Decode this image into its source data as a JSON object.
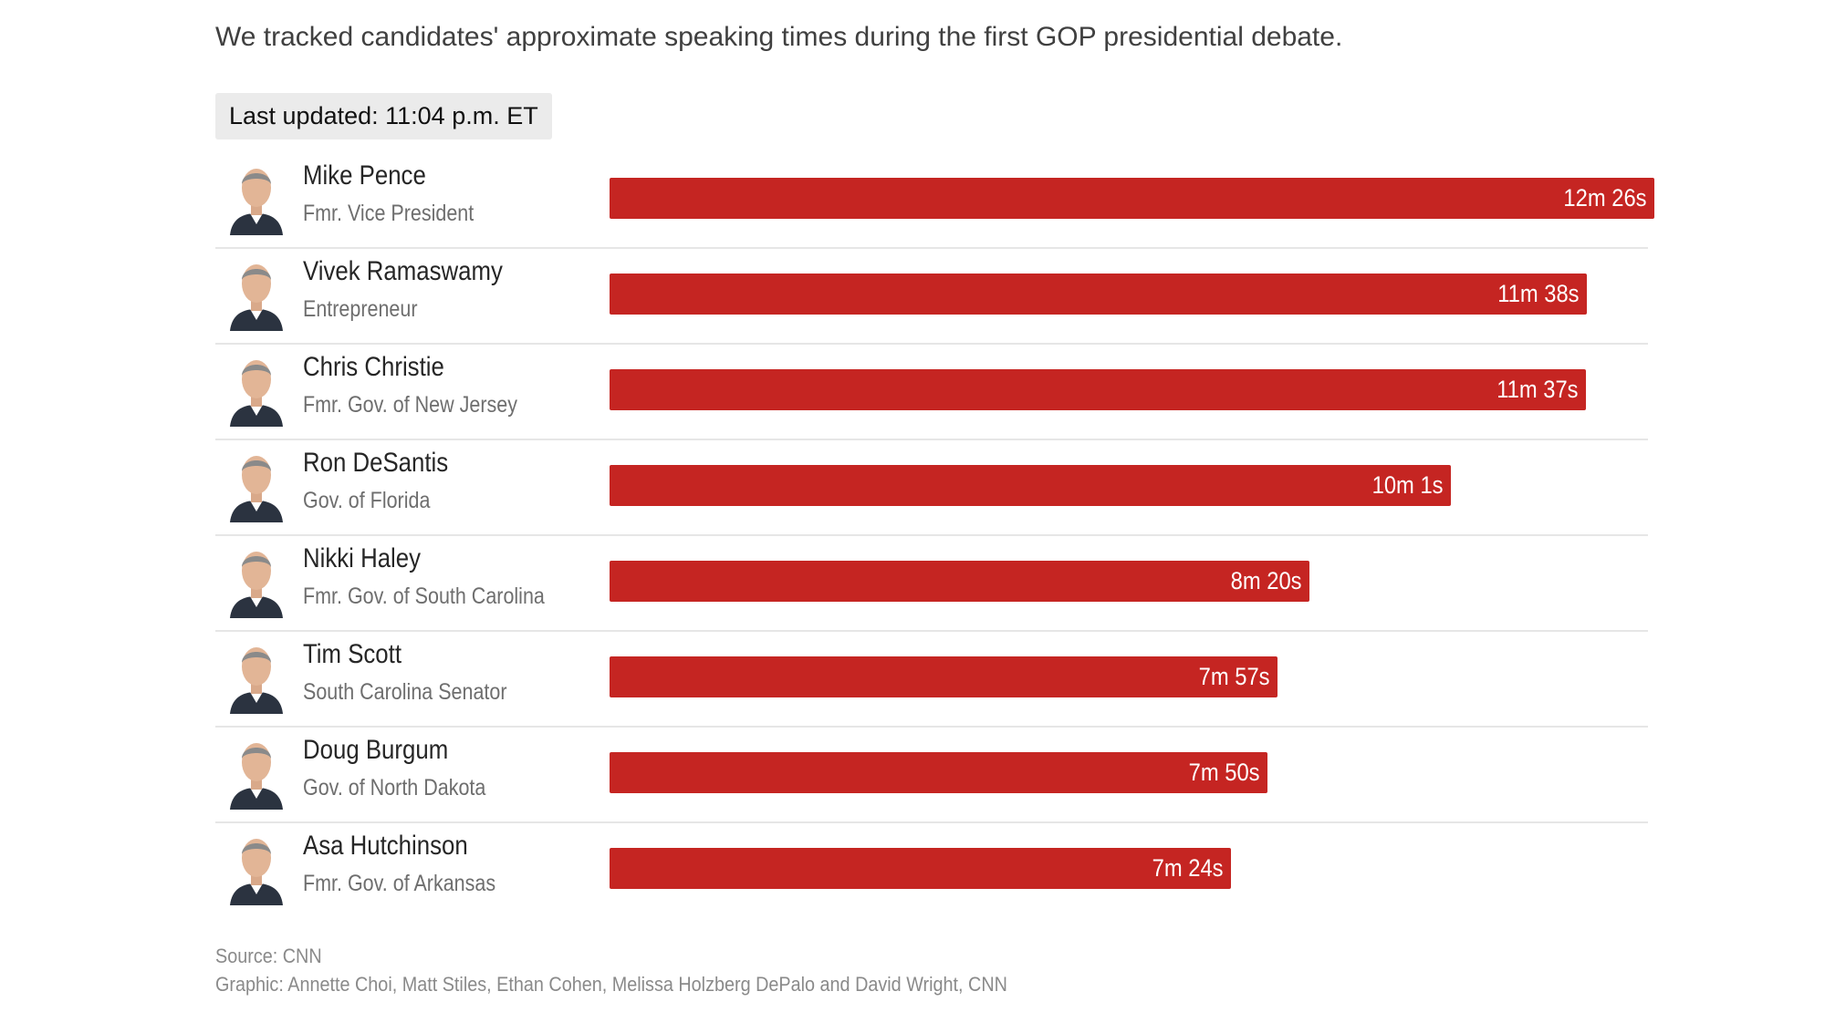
{
  "header": {
    "subtitle": "We tracked candidates' approximate speaking times during the first GOP presidential debate.",
    "last_updated": "Last updated: 11:04 p.m. ET"
  },
  "colors": {
    "bar": "#c52522",
    "divider": "#e6e6e6"
  },
  "chart_data": {
    "type": "bar",
    "orientation": "horizontal",
    "unit": "seconds",
    "categories": [
      "Mike Pence",
      "Vivek Ramaswamy",
      "Chris Christie",
      "Ron DeSantis",
      "Nikki Haley",
      "Tim Scott",
      "Doug Burgum",
      "Asa Hutchinson"
    ],
    "subtitles": [
      "Fmr. Vice President",
      "Entrepreneur",
      "Fmr. Gov. of New Jersey",
      "Gov. of Florida",
      "Fmr. Gov. of South Carolina",
      "South Carolina Senator",
      "Gov. of North Dakota",
      "Fmr. Gov. of Arkansas"
    ],
    "values": [
      746,
      698,
      697,
      601,
      500,
      477,
      470,
      444
    ],
    "data_labels": [
      "12m 26s",
      "11m 38s",
      "11m 37s",
      "10m 1s",
      "8m 20s",
      "7m 57s",
      "7m 50s",
      "7m 24s"
    ],
    "xlim": [
      0,
      746
    ]
  },
  "candidates": [
    {
      "avatar_icon": "person-portrait-icon"
    },
    {
      "avatar_icon": "person-portrait-icon"
    },
    {
      "avatar_icon": "person-portrait-icon"
    },
    {
      "avatar_icon": "person-portrait-icon"
    },
    {
      "avatar_icon": "person-portrait-icon"
    },
    {
      "avatar_icon": "person-portrait-icon"
    },
    {
      "avatar_icon": "person-portrait-icon"
    },
    {
      "avatar_icon": "person-portrait-icon"
    }
  ],
  "footer": {
    "source": "Source: CNN",
    "credit": "Graphic: Annette Choi, Matt Stiles, Ethan Cohen, Melissa Holzberg DePalo and David Wright, CNN"
  }
}
